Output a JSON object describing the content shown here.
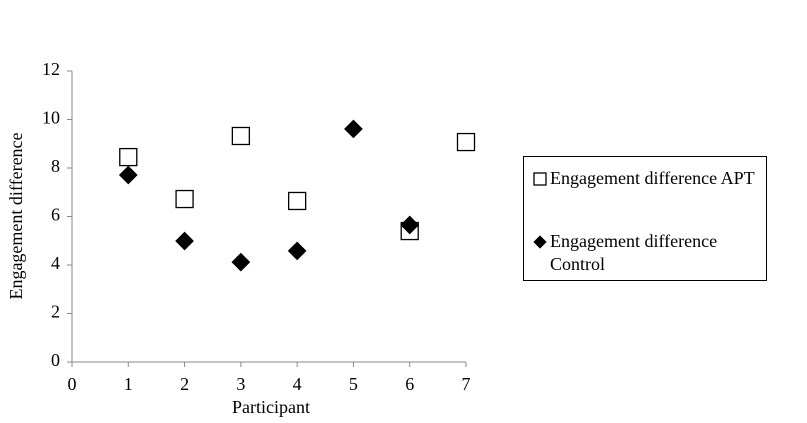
{
  "chart_data": {
    "type": "scatter",
    "x_label": "Participant",
    "y_label": "Engagement difference",
    "xlim": [
      0,
      7
    ],
    "xticks": [
      0,
      1,
      2,
      3,
      4,
      5,
      6,
      7
    ],
    "ylim": [
      0,
      12
    ],
    "yticks": [
      0,
      2,
      4,
      6,
      8,
      10,
      12
    ],
    "legend": "right",
    "series": [
      {
        "name": "Engagement difference APT",
        "marker": "square",
        "color": "#000000",
        "x": [
          1,
          2,
          3,
          4,
          6,
          7
        ],
        "values": [
          8.45,
          6.72,
          9.32,
          6.64,
          5.4,
          9.07
        ]
      },
      {
        "name": "Engagement difference Control",
        "marker": "diamond",
        "color": "#000000",
        "x": [
          1,
          2,
          3,
          4,
          5,
          6
        ],
        "values": [
          7.71,
          4.99,
          4.12,
          4.58,
          9.61,
          5.65
        ]
      }
    ]
  }
}
